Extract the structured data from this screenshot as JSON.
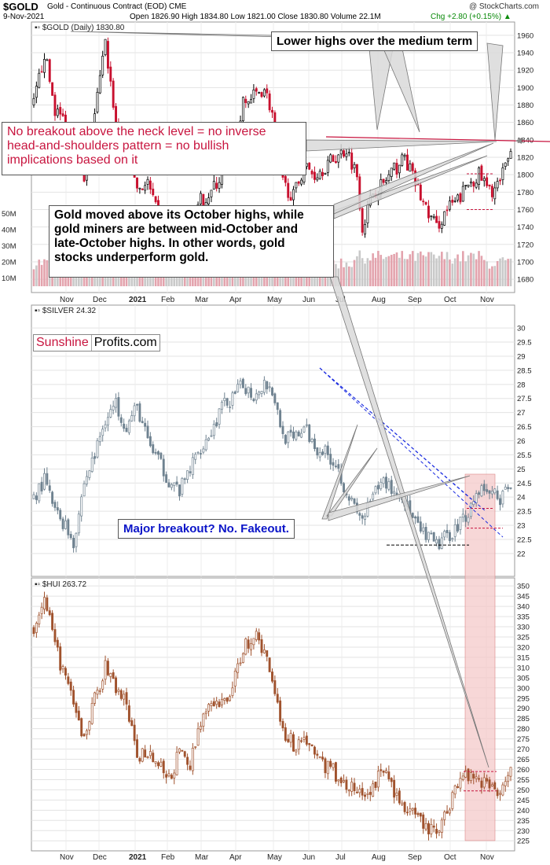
{
  "header": {
    "symbol": "$GOLD",
    "subtitle": "Gold - Continuous Contract (EOD) CME",
    "source": "@ StockCharts.com",
    "date": "9-Nov-2021",
    "ohlc": "Open 1826.90 High 1834.80 Low 1821.00 Close 1830.80 Volume 22.1M",
    "change": "Chg +2.80 (+0.15%)",
    "change_arrow": "▲"
  },
  "annotations": {
    "lower_highs": "Lower highs over the medium term",
    "neck_line1": "No breakout above the neck level = no inverse",
    "neck_line2": "head-and-shoulders pattern = no bullish",
    "neck_line3": "implications based on it",
    "miners_line1": "Gold moved above its October highs, while",
    "miners_line2": "gold miners are between mid-October and",
    "miners_line3": "late-October highs. In other words, gold",
    "miners_line4": "stocks underperform gold.",
    "fakeout": "Major breakout? No. Fakeout."
  },
  "logo": {
    "part1": "Sunshine",
    "part2": "Profits.com"
  },
  "colors": {
    "gold": "#000000",
    "gold_down": "#c8102e",
    "silver": "#6f8290",
    "hui": "#a0522d",
    "neck": "#c8153f",
    "trend_blue": "#1a2be0",
    "highlight": "#f4c9c9",
    "volume": "#c9c9c9",
    "volume_up": "#e3a3ad"
  },
  "chart_data": [
    {
      "type": "candlestick",
      "name": "$GOLD (Daily) 1830.80",
      "y_ticks": [
        1680,
        1700,
        1720,
        1740,
        1760,
        1780,
        1800,
        1820,
        1840,
        1860,
        1880,
        1900,
        1920,
        1940,
        1960
      ],
      "ylim": [
        1672,
        1968
      ],
      "volume_ticks": [
        "10M",
        "20M",
        "30M",
        "40M",
        "50M"
      ],
      "neck_level": 1835,
      "x_labels": [
        "Nov",
        "Dec",
        "2021",
        "Feb",
        "Mar",
        "Apr",
        "May",
        "Jun",
        "Jul",
        "Aug",
        "Sep",
        "Oct",
        "Nov"
      ],
      "approx_close_path": [
        [
          0,
          1880
        ],
        [
          4,
          1940
        ],
        [
          8,
          1875
        ],
        [
          12,
          1860
        ],
        [
          15,
          1835
        ],
        [
          19,
          1790
        ],
        [
          23,
          1870
        ],
        [
          27,
          1950
        ],
        [
          31,
          1860
        ],
        [
          35,
          1840
        ],
        [
          39,
          1785
        ],
        [
          43,
          1790
        ],
        [
          47,
          1750
        ],
        [
          51,
          1730
        ],
        [
          55,
          1740
        ],
        [
          59,
          1725
        ],
        [
          63,
          1770
        ],
        [
          67,
          1780
        ],
        [
          71,
          1800
        ],
        [
          75,
          1830
        ],
        [
          79,
          1880
        ],
        [
          83,
          1890
        ],
        [
          87,
          1900
        ],
        [
          90,
          1870
        ],
        [
          94,
          1790
        ],
        [
          98,
          1775
        ],
        [
          102,
          1810
        ],
        [
          106,
          1800
        ],
        [
          110,
          1810
        ],
        [
          114,
          1820
        ],
        [
          118,
          1830
        ],
        [
          122,
          1800
        ],
        [
          124,
          1740
        ],
        [
          128,
          1780
        ],
        [
          132,
          1790
        ],
        [
          136,
          1805
        ],
        [
          140,
          1820
        ],
        [
          144,
          1790
        ],
        [
          148,
          1760
        ],
        [
          152,
          1740
        ],
        [
          156,
          1760
        ],
        [
          160,
          1770
        ],
        [
          164,
          1790
        ],
        [
          168,
          1800
        ],
        [
          172,
          1780
        ],
        [
          176,
          1790
        ],
        [
          180,
          1830
        ]
      ]
    },
    {
      "type": "candlestick",
      "name": "$SILVER 24.32",
      "y_ticks": [
        22,
        22.5,
        23,
        23.5,
        24,
        24.5,
        25,
        25.5,
        26,
        26.5,
        27,
        27.5,
        28,
        28.5,
        29,
        29.5,
        30
      ],
      "ylim": [
        21.55,
        30.45
      ],
      "support_level": 22.3,
      "resistance_levels": [
        23.6,
        22.9
      ],
      "approx_close_path": [
        [
          0,
          24
        ],
        [
          4,
          24.6
        ],
        [
          8,
          23.5
        ],
        [
          12,
          23
        ],
        [
          15,
          22.4
        ],
        [
          19,
          24.5
        ],
        [
          23,
          25.5
        ],
        [
          27,
          26.8
        ],
        [
          31,
          27.3
        ],
        [
          35,
          26.5
        ],
        [
          39,
          27.2
        ],
        [
          43,
          26
        ],
        [
          47,
          25.3
        ],
        [
          51,
          24.6
        ],
        [
          55,
          24.2
        ],
        [
          59,
          25
        ],
        [
          63,
          25.8
        ],
        [
          67,
          26.3
        ],
        [
          71,
          27.2
        ],
        [
          75,
          27.5
        ],
        [
          79,
          28
        ],
        [
          83,
          27.6
        ],
        [
          87,
          28.1
        ],
        [
          90,
          27.8
        ],
        [
          94,
          26.2
        ],
        [
          98,
          26
        ],
        [
          102,
          26.5
        ],
        [
          106,
          25.8
        ],
        [
          110,
          25.6
        ],
        [
          114,
          25.2
        ],
        [
          118,
          24.2
        ],
        [
          122,
          23.4
        ],
        [
          124,
          23.2
        ],
        [
          128,
          24
        ],
        [
          132,
          24.6
        ],
        [
          136,
          24.2
        ],
        [
          140,
          23.9
        ],
        [
          144,
          23
        ],
        [
          148,
          22.6
        ],
        [
          152,
          22.3
        ],
        [
          156,
          22.6
        ],
        [
          160,
          23
        ],
        [
          164,
          23.5
        ],
        [
          168,
          24.3
        ],
        [
          172,
          24.2
        ],
        [
          176,
          24
        ],
        [
          180,
          24.32
        ]
      ]
    },
    {
      "type": "candlestick",
      "name": "$HUI 263.72",
      "y_ticks": [
        225,
        230,
        235,
        240,
        245,
        250,
        255,
        260,
        265,
        270,
        275,
        280,
        285,
        290,
        295,
        300,
        305,
        310,
        315,
        320,
        325,
        330,
        335,
        340,
        345,
        350
      ],
      "ylim": [
        222,
        352
      ],
      "support_levels": [
        259,
        249.5
      ],
      "approx_close_path": [
        [
          0,
          330
        ],
        [
          4,
          345
        ],
        [
          8,
          320
        ],
        [
          12,
          305
        ],
        [
          15,
          290
        ],
        [
          19,
          275
        ],
        [
          23,
          295
        ],
        [
          27,
          310
        ],
        [
          31,
          300
        ],
        [
          35,
          292
        ],
        [
          39,
          265
        ],
        [
          43,
          270
        ],
        [
          47,
          262
        ],
        [
          51,
          255
        ],
        [
          55,
          268
        ],
        [
          59,
          262
        ],
        [
          63,
          285
        ],
        [
          67,
          290
        ],
        [
          71,
          292
        ],
        [
          75,
          300
        ],
        [
          79,
          320
        ],
        [
          83,
          326
        ],
        [
          87,
          318
        ],
        [
          90,
          305
        ],
        [
          94,
          280
        ],
        [
          98,
          272
        ],
        [
          102,
          276
        ],
        [
          106,
          268
        ],
        [
          110,
          262
        ],
        [
          114,
          258
        ],
        [
          118,
          252
        ],
        [
          122,
          250
        ],
        [
          124,
          245
        ],
        [
          128,
          252
        ],
        [
          132,
          260
        ],
        [
          136,
          250
        ],
        [
          140,
          240
        ],
        [
          144,
          236
        ],
        [
          148,
          232
        ],
        [
          152,
          228
        ],
        [
          156,
          240
        ],
        [
          160,
          255
        ],
        [
          164,
          258
        ],
        [
          168,
          256
        ],
        [
          172,
          252
        ],
        [
          176,
          250
        ],
        [
          180,
          263.72
        ]
      ]
    }
  ]
}
